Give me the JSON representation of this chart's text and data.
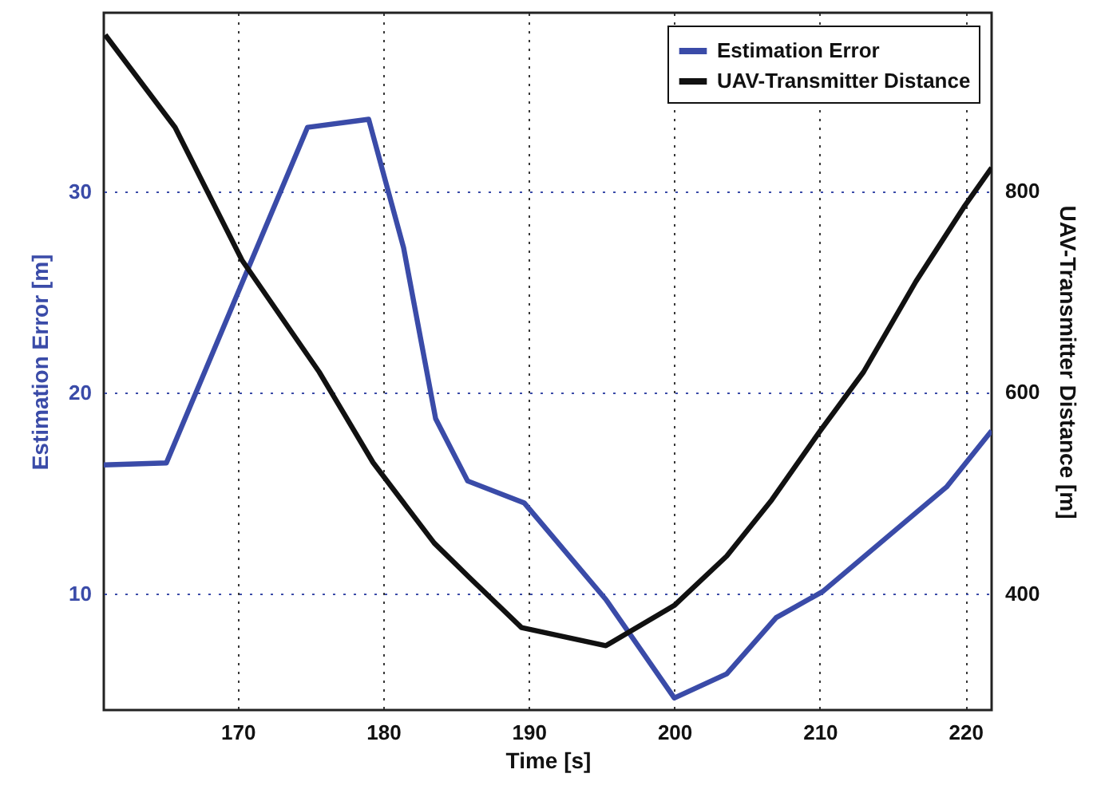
{
  "chart_data": {
    "type": "line",
    "xlabel": "Time [s]",
    "ylabel": "Estimation Error [m]",
    "y2label": "UAV-Transmitter Distance [m]",
    "xlim": [
      160.8,
      221.8
    ],
    "xticks": [
      170,
      180,
      190,
      200,
      210,
      220
    ],
    "ylim": [
      4.2,
      38.9
    ],
    "yticks": [
      10,
      20,
      30
    ],
    "y2lim": [
      284,
      977
    ],
    "y2ticks": [
      400,
      600,
      800
    ],
    "grid": true,
    "legend": "top right",
    "line_style": "solid",
    "series": [
      {
        "name": "Estimation Error",
        "color": "#3a4ba8",
        "x": [
          160.8,
          165.1,
          174.8,
          179.0,
          181.4,
          183.6,
          185.8,
          189.7,
          195.3,
          200.0,
          203.6,
          207.0,
          210.2,
          218.7,
          221.8
        ],
        "values": [
          16.4,
          16.5,
          33.2,
          33.6,
          27.2,
          18.7,
          15.6,
          14.5,
          9.7,
          4.8,
          6.0,
          8.8,
          10.1,
          15.3,
          18.1
        ]
      },
      {
        "name": "UAV-Transmitter Distance",
        "color": "#111111",
        "axis": "y2",
        "x": [
          160.9,
          165.7,
          170.3,
          175.6,
          179.3,
          183.5,
          185.9,
          189.5,
          195.3,
          200.0,
          203.6,
          206.7,
          210.0,
          213.0,
          216.6,
          219.9,
          221.8
        ],
        "values": [
          955,
          863,
          731,
          620,
          530,
          450,
          416,
          366,
          348,
          388,
          437,
          493,
          561,
          620,
          710,
          784,
          823
        ]
      }
    ]
  }
}
